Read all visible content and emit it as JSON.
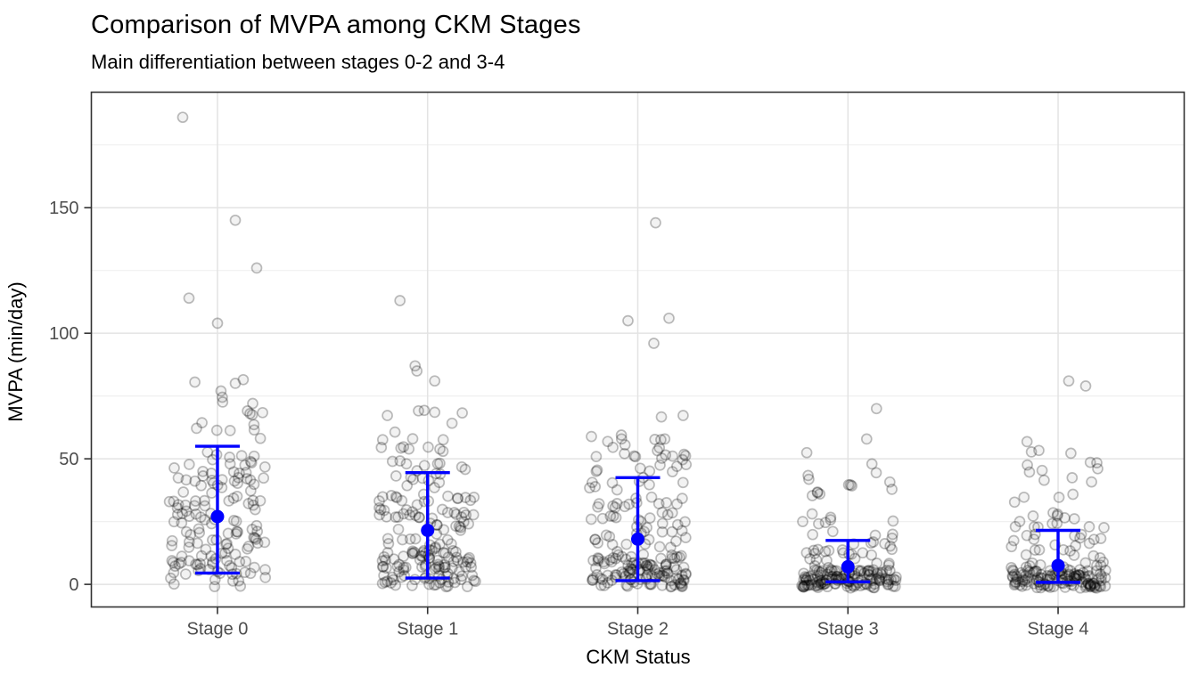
{
  "chart_data": {
    "type": "scatter",
    "subtype": "jittered points with mean and error bars",
    "title": "Comparison of MVPA among CKM Stages",
    "subtitle": "Main differentiation between stages 0-2 and 3-4",
    "xlabel": "CKM Status",
    "ylabel": "MVPA (min/day)",
    "categories": [
      "Stage 0",
      "Stage 1",
      "Stage 2",
      "Stage 3",
      "Stage 4"
    ],
    "y_axis": {
      "ticks": [
        0,
        50,
        100,
        150
      ],
      "minor_ticks": [
        25,
        75,
        125,
        175
      ],
      "range": [
        -9,
        196
      ],
      "grid": true
    },
    "legend": "none",
    "summary_series": {
      "name": "mean with error bars",
      "values": [
        {
          "stage": "Stage 0",
          "mean": 27,
          "lower": 4.5,
          "upper": 55
        },
        {
          "stage": "Stage 1",
          "mean": 21.5,
          "lower": 2.5,
          "upper": 44.5
        },
        {
          "stage": "Stage 2",
          "mean": 18,
          "lower": 1.5,
          "upper": 42.5
        },
        {
          "stage": "Stage 3",
          "mean": 7,
          "lower": 1,
          "upper": 17.5
        },
        {
          "stage": "Stage 4",
          "mean": 7.5,
          "lower": 0.8,
          "upper": 21.5
        }
      ]
    },
    "point_clouds": {
      "seed": 42,
      "jitter_width": 0.23,
      "clouds": [
        {
          "stage": "Stage 0",
          "n": 160,
          "components": [
            {
              "w": 0.55,
              "min": -1,
              "max": 30
            },
            {
              "w": 0.33,
              "min": 30,
              "max": 52
            },
            {
              "w": 0.12,
              "min": 52,
              "max": 82
            }
          ],
          "outliers": [
            [
              104,
              0
            ],
            [
              114,
              -32
            ],
            [
              126,
              44
            ],
            [
              145,
              20
            ],
            [
              186,
              -39
            ]
          ]
        },
        {
          "stage": "Stage 1",
          "n": 190,
          "components": [
            {
              "w": 0.5,
              "min": -1,
              "max": 15
            },
            {
              "w": 0.3,
              "min": 15,
              "max": 35
            },
            {
              "w": 0.15,
              "min": 35,
              "max": 55
            },
            {
              "w": 0.05,
              "min": 55,
              "max": 70
            }
          ],
          "outliers": [
            [
              81,
              8
            ],
            [
              85,
              -12
            ],
            [
              87,
              -14
            ],
            [
              113,
              -31
            ]
          ]
        },
        {
          "stage": "Stage 2",
          "n": 200,
          "components": [
            {
              "w": 0.55,
              "min": -1,
              "max": 12
            },
            {
              "w": 0.25,
              "min": 12,
              "max": 35
            },
            {
              "w": 0.15,
              "min": 35,
              "max": 55
            },
            {
              "w": 0.05,
              "min": 55,
              "max": 68
            }
          ],
          "outliers": [
            [
              96,
              18
            ],
            [
              105,
              -11
            ],
            [
              106,
              35
            ],
            [
              144,
              20
            ]
          ]
        },
        {
          "stage": "Stage 3",
          "n": 180,
          "components": [
            {
              "w": 0.7,
              "min": -1.5,
              "max": 6
            },
            {
              "w": 0.17,
              "min": 6,
              "max": 20
            },
            {
              "w": 0.1,
              "min": 20,
              "max": 42
            },
            {
              "w": 0.03,
              "min": 42,
              "max": 58
            }
          ],
          "outliers": [
            [
              70,
              32
            ]
          ]
        },
        {
          "stage": "Stage 4",
          "n": 180,
          "components": [
            {
              "w": 0.66,
              "min": -1.5,
              "max": 6
            },
            {
              "w": 0.17,
              "min": 6,
              "max": 20
            },
            {
              "w": 0.11,
              "min": 20,
              "max": 42
            },
            {
              "w": 0.06,
              "min": 42,
              "max": 57
            }
          ],
          "outliers": [
            [
              79,
              31
            ],
            [
              81,
              12
            ]
          ]
        }
      ]
    },
    "style": {
      "accent_blue": "#0000FF",
      "point_fill": "rgba(0,0,0,0.05)",
      "point_stroke": "rgba(0,0,0,0.26)",
      "grid_major": "#e3e3e3",
      "grid_minor": "#f0f0f0",
      "axis_text_color": "#4d4d4d",
      "panel_border_color": "#333333",
      "background": "#ffffff"
    }
  }
}
